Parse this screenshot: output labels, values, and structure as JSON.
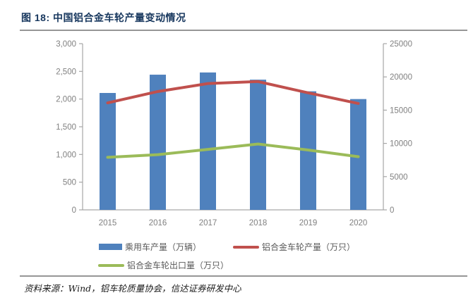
{
  "figure": {
    "title": "图 18:  中国铝合金车轮产量变动情况",
    "source": "资料来源：Wind，铝车轮质量协会，信达证券研发中心"
  },
  "colors": {
    "title_text": "#17375E",
    "bar": "#4F81BD",
    "line_production": "#C0504D",
    "line_export": "#9BBB59",
    "axis_line": "#A6A6A6",
    "axis_text": "#808080",
    "legend_text": "#595959",
    "rule": "#969696",
    "source_text": "#1A1A1A"
  },
  "chart_data": {
    "type": "bar",
    "subtype": "bar-line-combo",
    "categories": [
      "2015",
      "2016",
      "2017",
      "2018",
      "2019",
      "2020"
    ],
    "series": [
      {
        "name": "乘用车产量（万辆）",
        "type": "bar",
        "axis": "left",
        "values": [
          2110,
          2440,
          2480,
          2350,
          2140,
          2000
        ]
      },
      {
        "name": "铝合金车轮产量（万只）",
        "type": "line",
        "axis": "right",
        "values": [
          16100,
          17800,
          19000,
          19300,
          17600,
          16000
        ]
      },
      {
        "name": "铝合金车轮出口量（万只）",
        "type": "line",
        "axis": "right",
        "values": [
          7900,
          8300,
          9100,
          9900,
          9000,
          8000
        ]
      }
    ],
    "left_axis": {
      "min": 0,
      "max": 3000,
      "step": 500,
      "tick_labels": [
        "0",
        "500",
        "1,000",
        "1,500",
        "2,000",
        "2,500",
        "3,000"
      ]
    },
    "right_axis": {
      "min": 0,
      "max": 25000,
      "step": 5000,
      "tick_labels": [
        "0",
        "5000",
        "10000",
        "15000",
        "20000",
        "25000"
      ]
    },
    "grid": false,
    "legend_position": "bottom"
  }
}
